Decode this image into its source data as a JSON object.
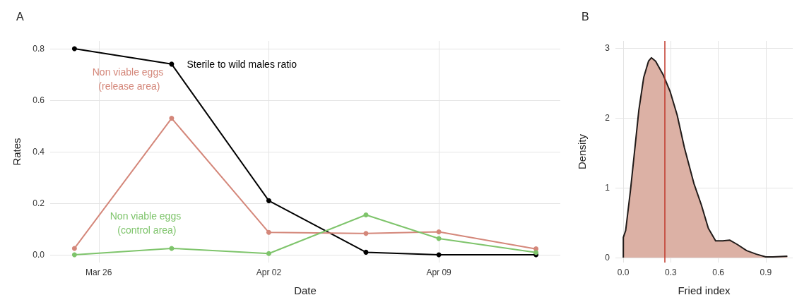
{
  "chart_data": [
    {
      "type": "line",
      "title": "A",
      "xlabel": "Date",
      "ylabel": "Rates",
      "x": [
        "--03-25",
        "--03-29",
        "--04-02",
        "--04-06",
        "--04-09",
        "--04-13"
      ],
      "series": [
        {
          "name": "Sterile to wild males ratio",
          "color": "#000000",
          "values": [
            0.8,
            0.74,
            0.21,
            0.01,
            0.0,
            0.0
          ]
        },
        {
          "name": "Non viable eggs (release area)",
          "color": "#d4877a",
          "values": [
            0.025,
            0.53,
            0.087,
            0.083,
            0.089,
            0.023
          ]
        },
        {
          "name": "Non viable eggs (control area)",
          "color": "#7ec46b",
          "values": [
            0.0,
            0.025,
            0.005,
            0.155,
            0.063,
            0.009
          ]
        }
      ],
      "xlim": [
        "--03-24",
        "--04-14"
      ],
      "xticks": [
        {
          "value": "--03-26",
          "label": "Mar 26"
        },
        {
          "value": "--04-02",
          "label": "Apr 02"
        },
        {
          "value": "--04-09",
          "label": "Apr 09"
        }
      ],
      "ylim": [
        -0.03,
        0.83
      ],
      "yticks": [
        {
          "value": 0,
          "label": "0.0"
        },
        0.2,
        0.4,
        0.6,
        0.8
      ],
      "grid": true,
      "legend": false,
      "marker": "circle",
      "line_style": "solid"
    },
    {
      "type": "area",
      "title": "B",
      "xlabel": "Fried index",
      "ylabel": "Density",
      "x": [
        0,
        0.0001,
        0.015,
        0.045,
        0.076,
        0.098,
        0.129,
        0.159,
        0.177,
        0.204,
        0.253,
        0.295,
        0.34,
        0.386,
        0.446,
        0.492,
        0.537,
        0.583,
        0.628,
        0.673,
        0.719,
        0.779,
        0.84,
        0.9,
        0.945,
        1.036
      ],
      "series": [
        {
          "color": "#dcb1a5",
          "values": [
            0,
            0.29,
            0.39,
            0.96,
            1.63,
            2.11,
            2.58,
            2.81,
            2.86,
            2.81,
            2.61,
            2.38,
            2.04,
            1.57,
            1.06,
            0.76,
            0.42,
            0.24,
            0.24,
            0.25,
            0.19,
            0.1,
            0.05,
            0.01,
            0.01,
            0.02
          ]
        }
      ],
      "xlim": [
        -0.05,
        1.07
      ],
      "xticks": [
        {
          "value": 0,
          "label": "0.0"
        },
        0.3,
        0.6,
        0.9
      ],
      "ylim": [
        -0.07,
        3.1
      ],
      "yticks": [
        0,
        1,
        2,
        3
      ],
      "ref_lines": [
        {
          "axis": "x",
          "value": 0.26,
          "color": "#c0392b"
        }
      ],
      "grid": true,
      "legend": false,
      "marker": "none",
      "line_style": "solid"
    }
  ]
}
